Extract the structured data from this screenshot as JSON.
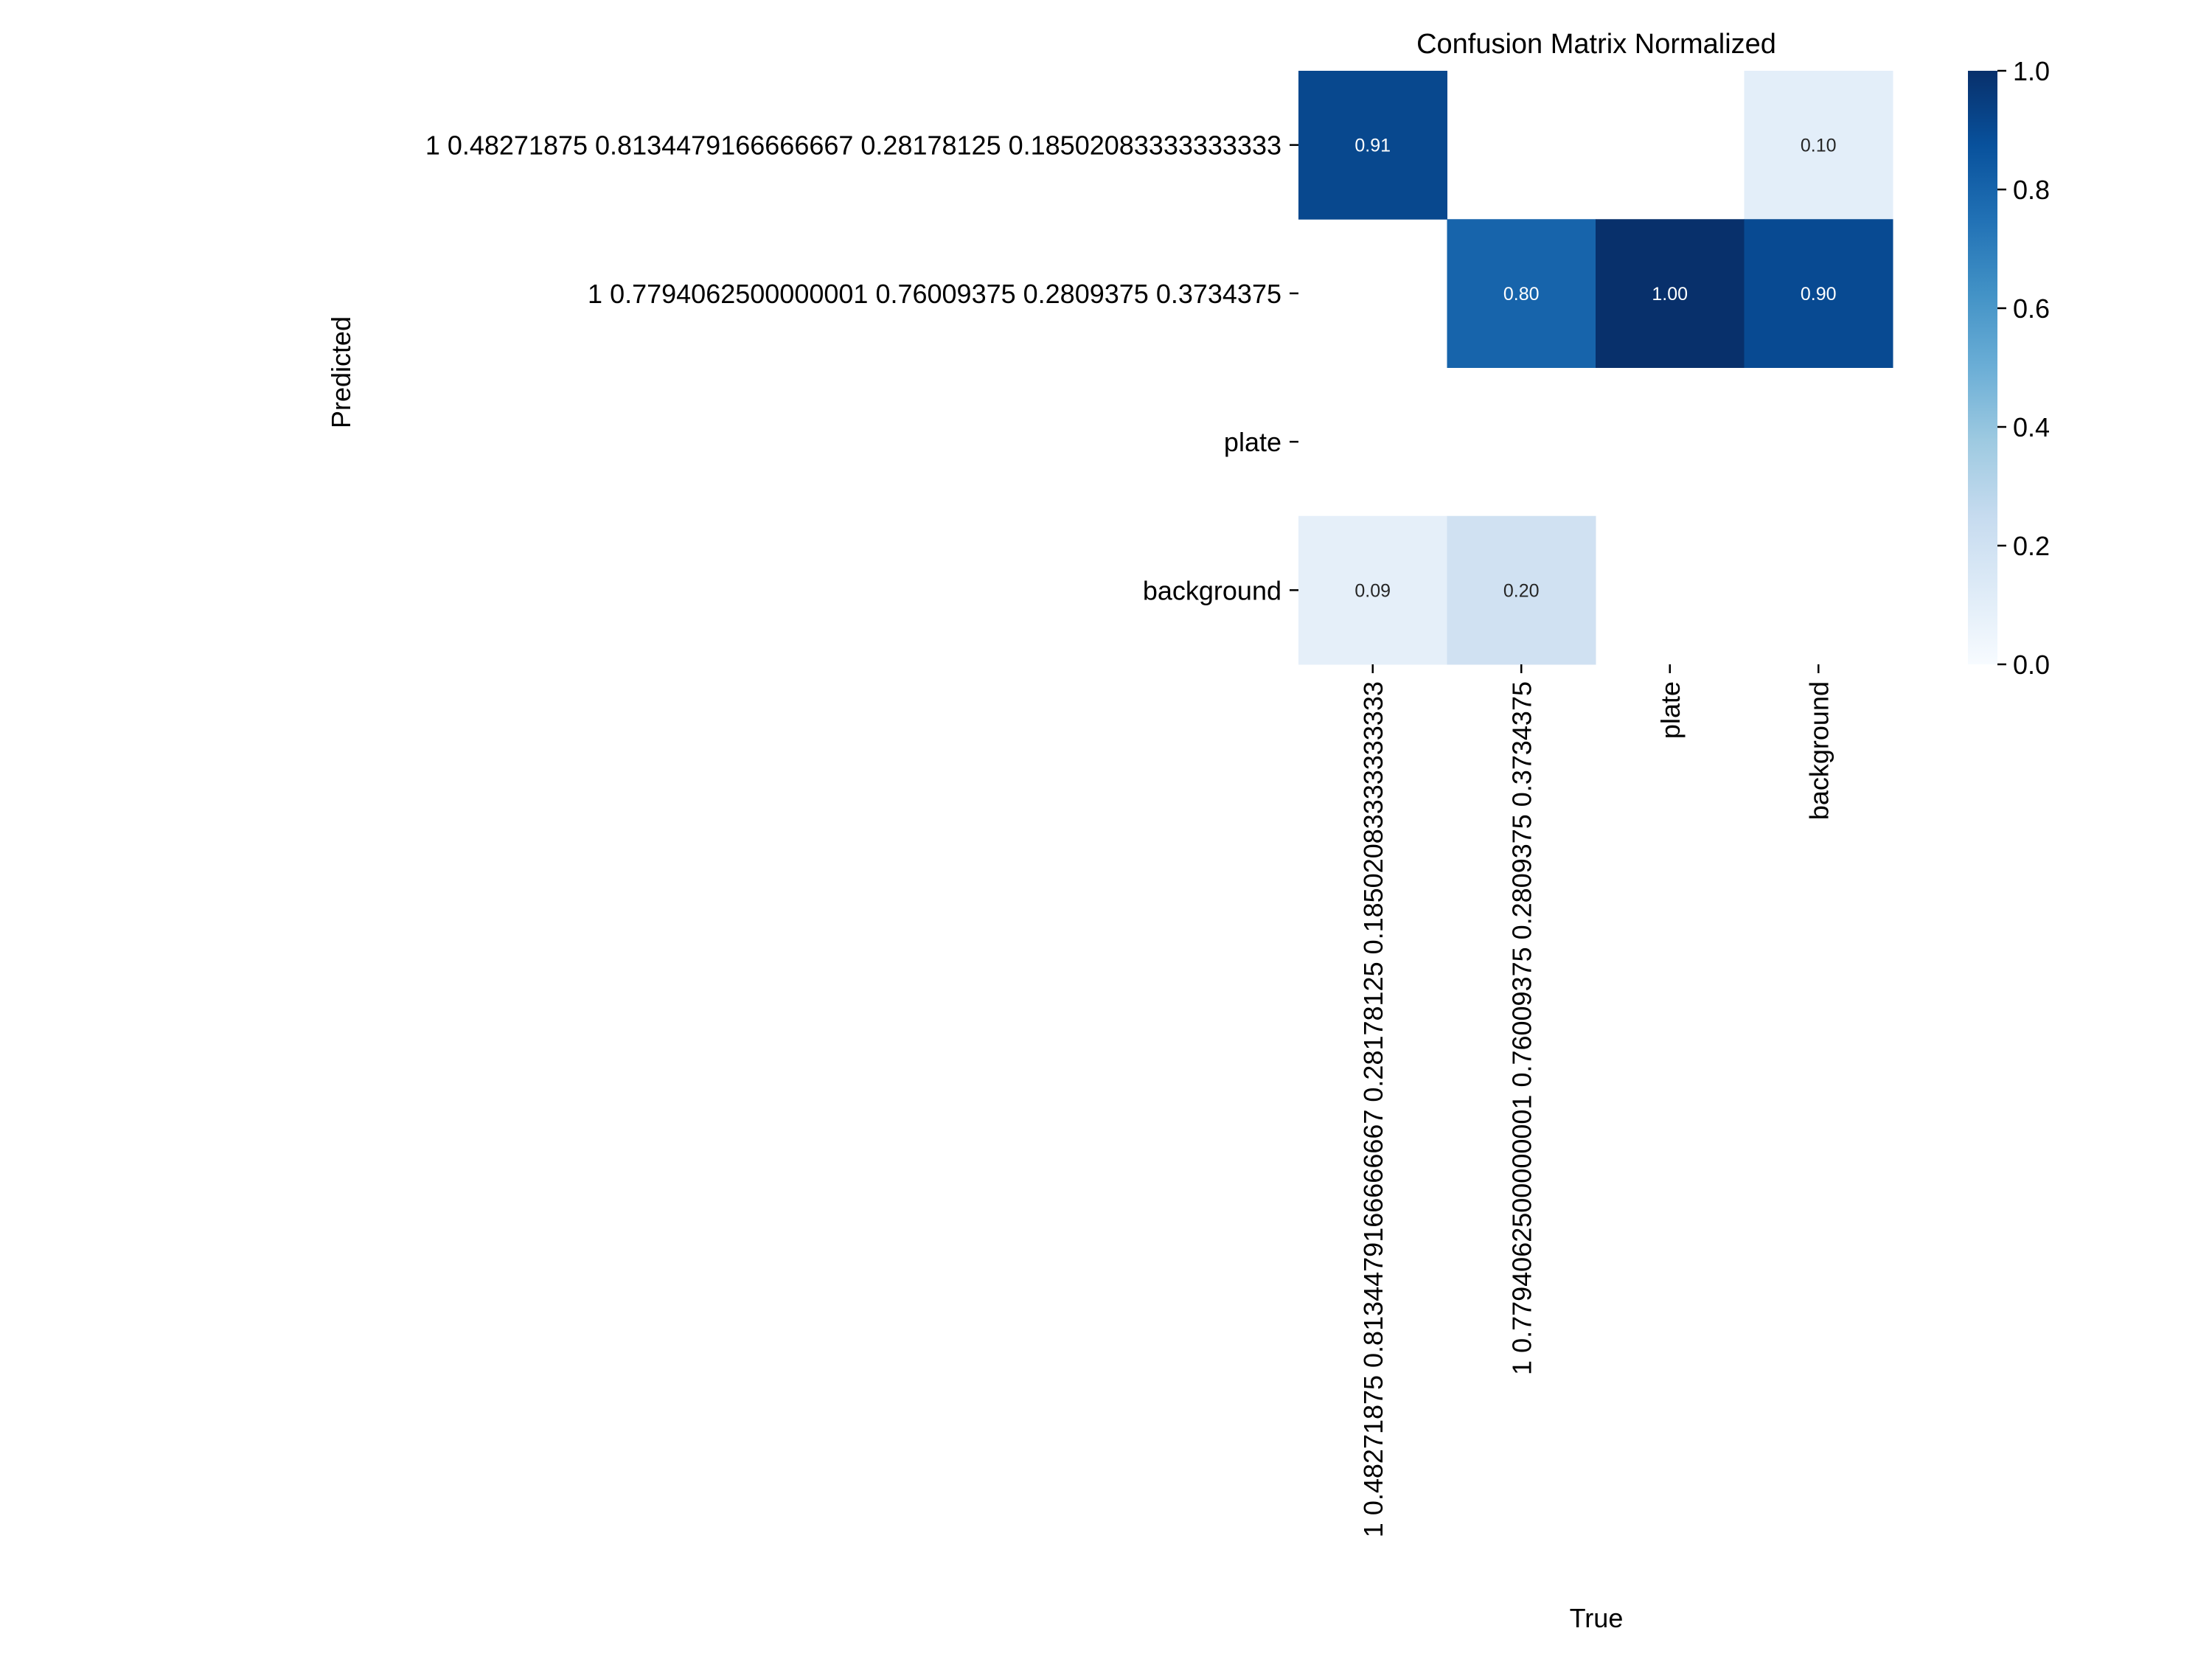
{
  "chart_data": {
    "type": "heatmap",
    "title": "Confusion Matrix Normalized",
    "xlabel": "True",
    "ylabel": "Predicted",
    "row_labels": [
      "1 0.48271875 0.8134479166666667 0.28178125 0.18502083333333333",
      "1 0.7794062500000001 0.76009375 0.2809375 0.3734375",
      "plate",
      "background"
    ],
    "column_labels": [
      "1 0.48271875 0.8134479166666667 0.28178125 0.18502083333333333",
      "1 0.7794062500000001 0.76009375 0.2809375 0.3734375",
      "plate",
      "background"
    ],
    "values": [
      [
        0.91,
        null,
        null,
        0.1
      ],
      [
        null,
        0.8,
        1.0,
        0.9
      ],
      [
        null,
        null,
        null,
        null
      ],
      [
        0.09,
        0.2,
        null,
        null
      ]
    ],
    "value_labels": [
      [
        "0.91",
        "",
        "",
        "0.10"
      ],
      [
        "",
        "0.80",
        "1.00",
        "0.90"
      ],
      [
        "",
        "",
        "",
        ""
      ],
      [
        "0.09",
        "0.20",
        "",
        ""
      ]
    ],
    "colormap": "Blues",
    "color_range": [
      0.0,
      1.0
    ],
    "colorbar_ticks": [
      "0.0",
      "0.2",
      "0.4",
      "0.6",
      "0.8",
      "1.0"
    ]
  }
}
